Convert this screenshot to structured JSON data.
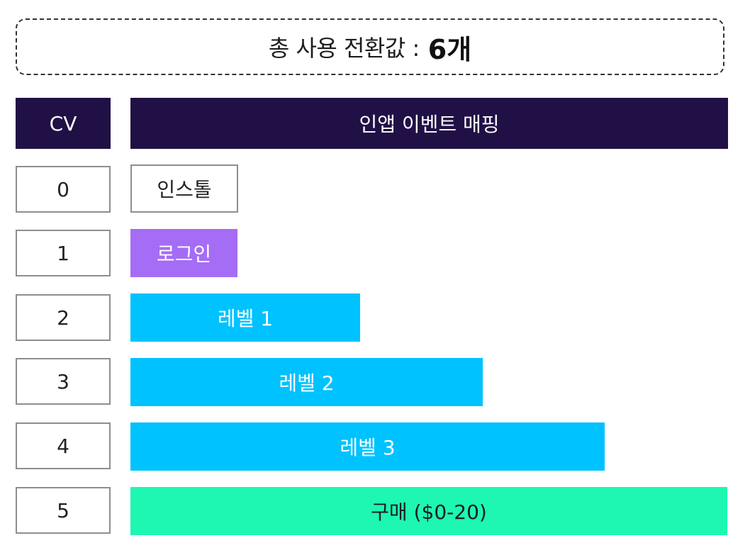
{
  "summary": {
    "label": "총 사용 전환값 :",
    "value": "6개"
  },
  "headers": {
    "cv": "CV",
    "mapping": "인앱 이벤트 매핑"
  },
  "rows": [
    {
      "cv": "0",
      "event": "인스톨",
      "color": "#ffffff",
      "text_color": "#222222",
      "border": "#8e8e8e"
    },
    {
      "cv": "1",
      "event": "로그인",
      "color": "#a56cf5",
      "text_color": "#ffffff",
      "border": ""
    },
    {
      "cv": "2",
      "event": "레벨 1",
      "color": "#00c2ff",
      "text_color": "#ffffff",
      "border": ""
    },
    {
      "cv": "3",
      "event": "레벨 2",
      "color": "#00c2ff",
      "text_color": "#ffffff",
      "border": ""
    },
    {
      "cv": "4",
      "event": "레벨 3",
      "color": "#00c2ff",
      "text_color": "#ffffff",
      "border": ""
    },
    {
      "cv": "5",
      "event": "구매 ($0-20)",
      "color": "#1df7b1",
      "text_color": "#1e1e1e",
      "border": ""
    }
  ],
  "colors": {
    "header_bg": "#211045",
    "header_text": "#ffffff"
  }
}
